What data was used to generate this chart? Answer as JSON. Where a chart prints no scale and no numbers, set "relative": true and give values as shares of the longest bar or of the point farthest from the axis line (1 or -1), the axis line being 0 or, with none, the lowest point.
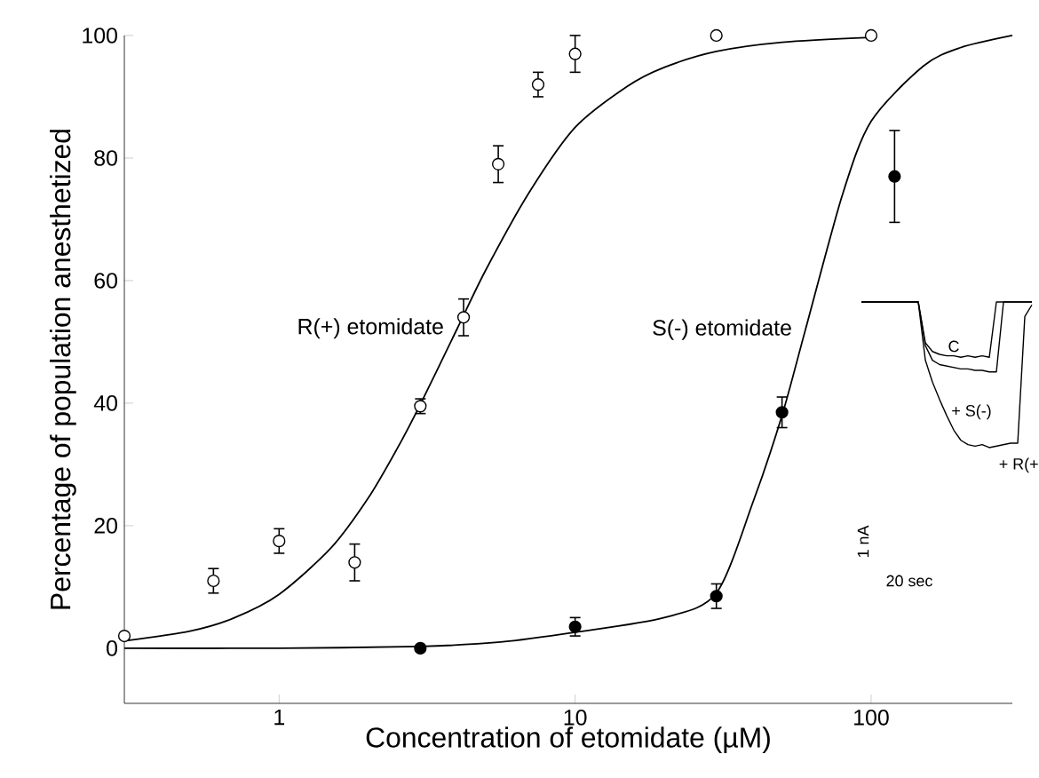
{
  "chart_data": [
    {
      "type": "scatter",
      "xlabel": "Concentration of etomidate (µM)",
      "ylabel": "Percentage of population anesthetized",
      "log": "x",
      "xlim": [
        0.3,
        300
      ],
      "ylim": [
        -9,
        100
      ],
      "xticks": [
        1,
        10,
        100
      ],
      "yticks": [
        0,
        20,
        40,
        60,
        80,
        100
      ],
      "grid": false,
      "series": [
        {
          "type": "scatter",
          "color": "#ffffff",
          "marker": "circle",
          "x": [
            0.3,
            0.6,
            1,
            1.8,
            3,
            4.2,
            5.5,
            7.5,
            10,
            30,
            100
          ],
          "values": [
            2,
            11,
            17.5,
            14,
            39.5,
            54,
            79,
            92,
            97,
            100,
            100
          ],
          "errors": [
            null,
            2,
            2,
            3,
            1.2,
            3,
            3,
            2,
            3,
            null,
            null
          ]
        },
        {
          "type": "scatter",
          "color": "#000000",
          "marker": "circle",
          "x": [
            3,
            10,
            30,
            50,
            120
          ],
          "values": [
            0,
            3.5,
            8.5,
            38.5,
            77
          ],
          "errors": [
            null,
            1.5,
            2,
            2.5,
            7.5
          ]
        },
        {
          "type": "line",
          "name": "R(+) etomidate",
          "color": "#000000",
          "marker": "none",
          "x": [
            0.3,
            0.5,
            0.7,
            1,
            1.5,
            2,
            2.5,
            3,
            4,
            5,
            7,
            10,
            15,
            20,
            30,
            50,
            100
          ],
          "values": [
            1.2,
            2.8,
            4.9,
            8.8,
            16.4,
            24.5,
            32.5,
            39.8,
            52.2,
            61.8,
            74.4,
            85,
            91.7,
            94.8,
            97.4,
            98.9,
            99.7
          ]
        },
        {
          "type": "line",
          "name": "S(-) etomidate",
          "color": "#000000",
          "marker": "none",
          "x": [
            0.3,
            1,
            3,
            5.6,
            10,
            20,
            30,
            40,
            50,
            60,
            80,
            100,
            150,
            200,
            300
          ],
          "values": [
            0,
            0,
            0.3,
            1,
            2.6,
            5,
            9,
            24,
            38,
            52,
            74,
            86,
            95,
            98,
            100
          ]
        }
      ]
    },
    {
      "type": "line",
      "relative": true,
      "categories": [
        null,
        null,
        null,
        null,
        null,
        null,
        null,
        null,
        null,
        null,
        null,
        null,
        null,
        null,
        null,
        null,
        null,
        null,
        null,
        null,
        null,
        null,
        null,
        null,
        null
      ],
      "annotations": [
        "C",
        "+ S(-)",
        "+ R(+",
        "1 nA",
        "20 sec"
      ],
      "series": [
        {
          "color": "#000000",
          "values": [
            1,
            1,
            1,
            1,
            1,
            1,
            1,
            1,
            1,
            0.72,
            0.66,
            0.64,
            0.63,
            0.63,
            0.62,
            0.63,
            0.62,
            0.63,
            0.62,
            1,
            1,
            1,
            1,
            1,
            1
          ]
        },
        {
          "color": "#000000",
          "values": [
            1,
            1,
            1,
            1,
            1,
            1,
            1,
            1,
            1,
            0.7,
            0.6,
            0.57,
            0.56,
            0.55,
            0.54,
            0.54,
            0.53,
            0.53,
            0.52,
            0.52,
            1,
            1,
            1,
            1,
            1
          ]
        },
        {
          "color": "#000000",
          "values": [
            1,
            1,
            1,
            1,
            1,
            1,
            1,
            1,
            1,
            0.6,
            0.45,
            0.33,
            0.22,
            0.12,
            0.05,
            0.02,
            0.01,
            0.02,
            0,
            0.01,
            0.02,
            0.03,
            0.03,
            0.9,
            0.98
          ]
        }
      ]
    }
  ]
}
